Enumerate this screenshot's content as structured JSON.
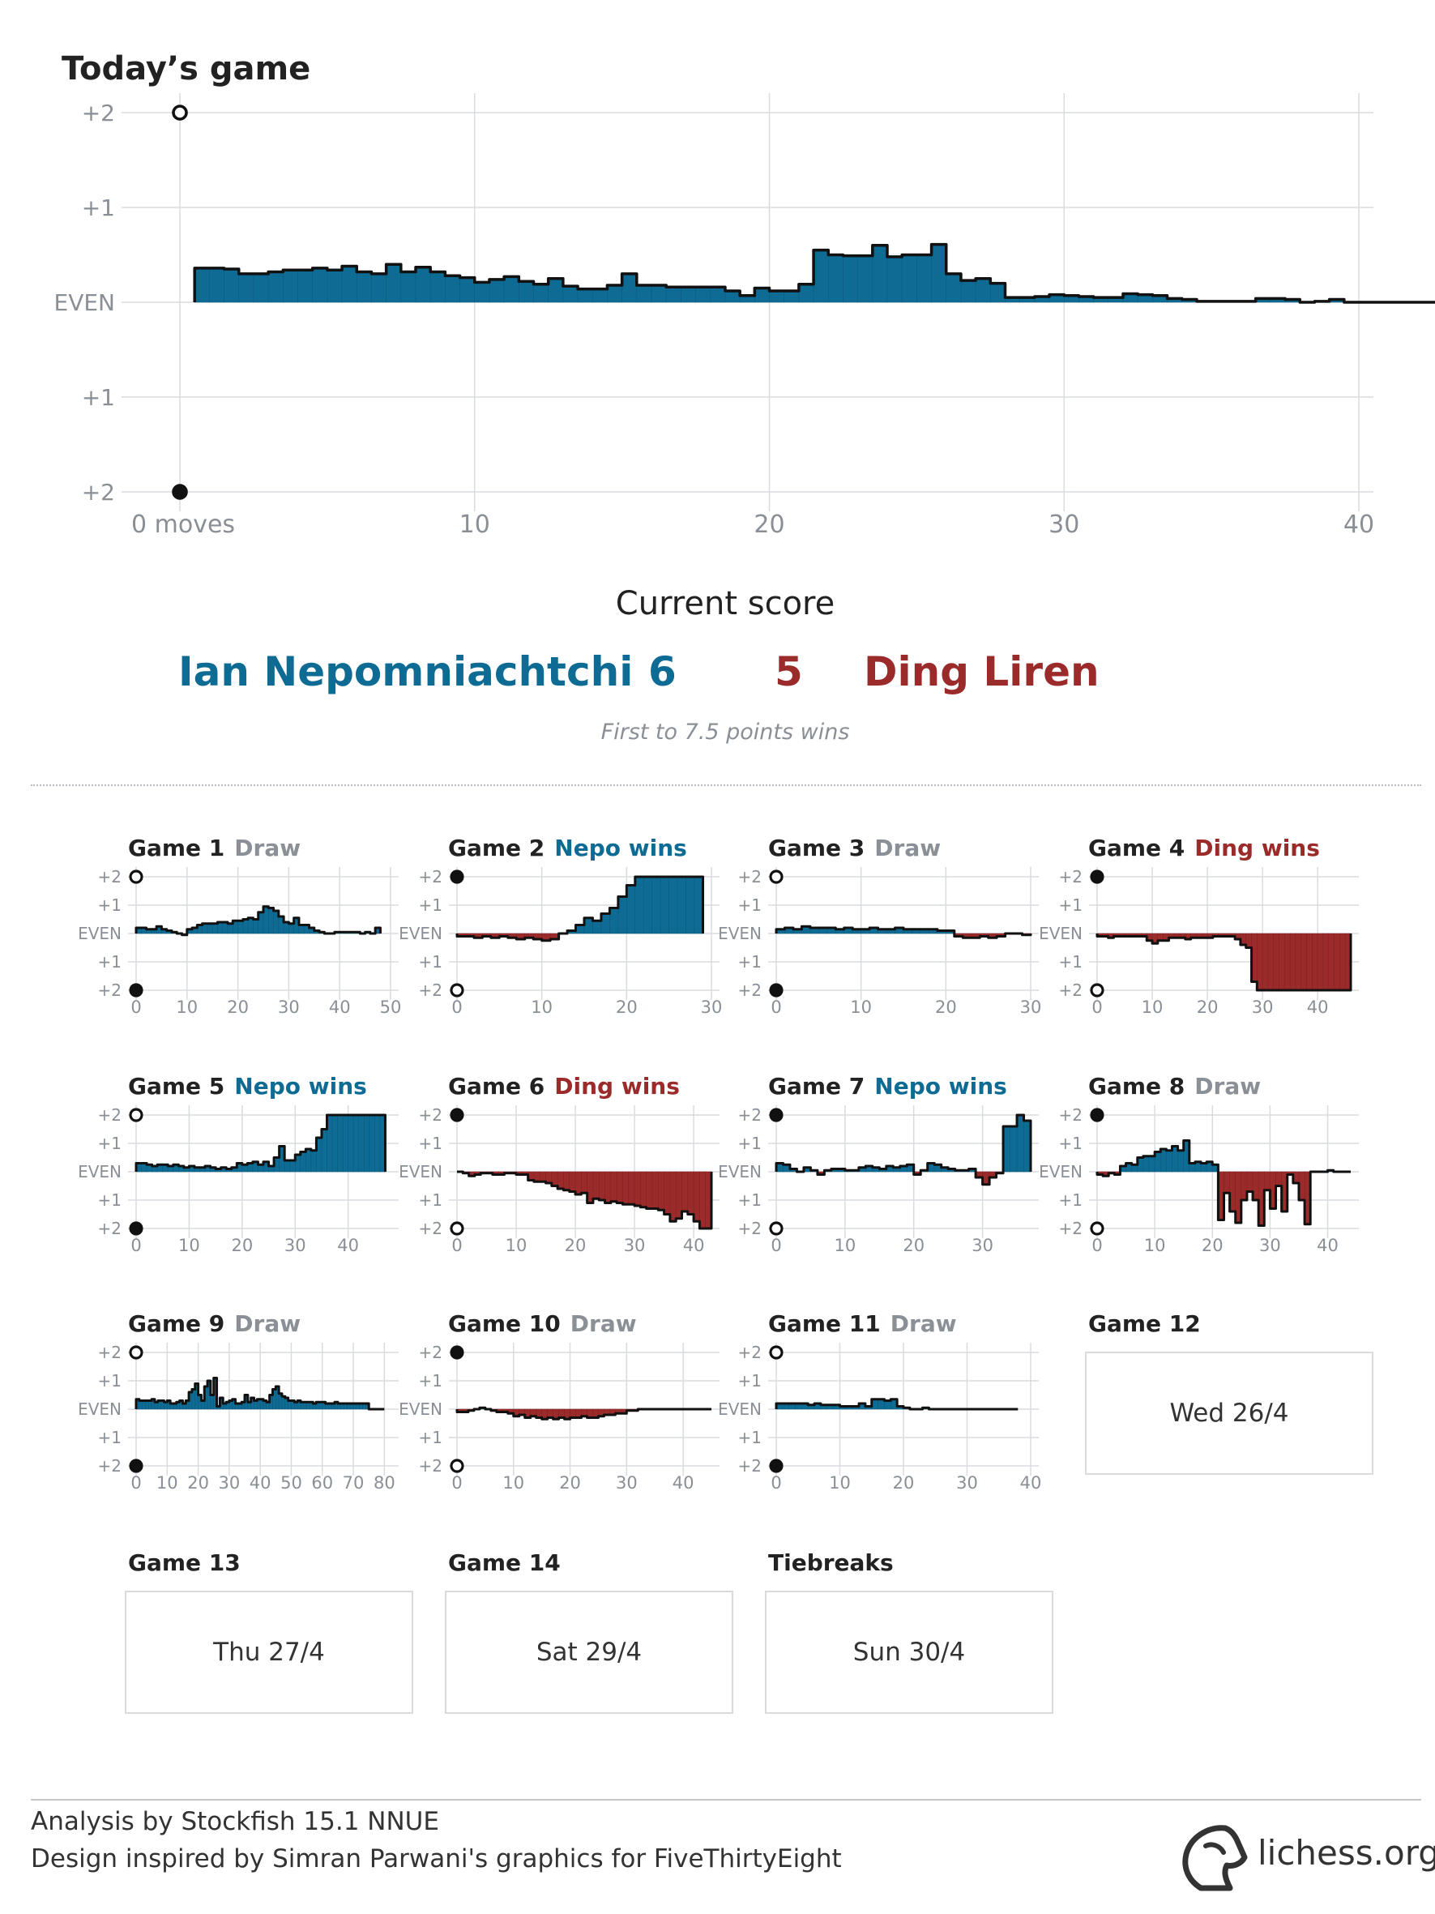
{
  "header": {
    "title": "Today’s game"
  },
  "colors": {
    "nepo": "#0e6b94",
    "ding": "#9b2b2b",
    "draw": "#8a9096",
    "grid": "#d9dcdf",
    "line": "#111111"
  },
  "chart_data": [
    {
      "id": "today",
      "type": "area",
      "xticks": [
        "0 moves",
        "10",
        "20",
        "30",
        "40"
      ],
      "xtick_values": [
        0,
        10,
        20,
        30,
        40
      ],
      "yticks": [
        "+2",
        "+1",
        "EVEN",
        "+1",
        "+2"
      ],
      "xlim": [
        0,
        40
      ],
      "ylim": [
        -2,
        2
      ],
      "grid": true,
      "top_marker": "white",
      "bottom_marker": "black",
      "x_step": 0.5,
      "y": [
        0.36,
        0.36,
        0.35,
        0.3,
        0.3,
        0.32,
        0.34,
        0.34,
        0.36,
        0.34,
        0.38,
        0.32,
        0.3,
        0.4,
        0.32,
        0.37,
        0.32,
        0.28,
        0.26,
        0.21,
        0.24,
        0.27,
        0.22,
        0.19,
        0.25,
        0.17,
        0.14,
        0.14,
        0.18,
        0.3,
        0.18,
        0.18,
        0.16,
        0.16,
        0.16,
        0.16,
        0.12,
        0.07,
        0.15,
        0.12,
        0.12,
        0.19,
        0.55,
        0.5,
        0.49,
        0.49,
        0.6,
        0.48,
        0.5,
        0.5,
        0.61,
        0.3,
        0.23,
        0.25,
        0.2,
        0.05,
        0.05,
        0.06,
        0.08,
        0.07,
        0.06,
        0.05,
        0.05,
        0.09,
        0.08,
        0.07,
        0.04,
        0.03,
        0.01,
        0.01,
        0.01,
        0.01,
        0.04,
        0.04,
        0.03,
        0.0,
        0.01,
        0.03,
        0,
        0,
        0,
        0,
        0,
        0,
        0,
        0,
        0,
        0,
        0,
        0,
        0,
        0,
        0,
        0,
        0,
        0,
        0,
        0,
        0,
        0,
        0,
        0,
        0,
        0,
        0,
        0.1,
        0.0,
        0,
        0,
        0,
        0,
        0,
        0,
        0,
        0,
        0,
        0,
        0,
        0,
        0,
        0,
        0,
        0,
        0,
        0,
        0,
        0,
        0,
        0,
        0,
        0,
        0,
        0,
        0,
        0,
        0,
        0,
        0,
        0,
        0,
        0,
        0,
        0,
        0,
        0,
        0,
        0,
        0,
        0,
        0,
        0,
        0,
        0,
        0,
        0,
        0,
        0,
        0,
        0,
        0,
        0,
        0,
        0,
        0,
        0,
        0,
        0,
        0,
        0,
        0,
        0,
        0,
        0,
        0,
        0,
        0,
        0,
        0,
        0,
        0
      ]
    },
    {
      "id": "g1",
      "type": "area",
      "title": "Game 1",
      "result": "Draw",
      "result_type": "draw",
      "xticks": [
        "0",
        "10",
        "20",
        "30",
        "40",
        "50"
      ],
      "xtick_values": [
        0,
        10,
        20,
        30,
        40,
        50
      ],
      "xlim": [
        0,
        50
      ],
      "top_marker": "white",
      "bottom_marker": "black",
      "y": [
        0.2,
        0.2,
        0.15,
        0.15,
        0.25,
        0.15,
        0.1,
        0.05,
        0.0,
        -0.05,
        0.15,
        0.2,
        0.3,
        0.35,
        0.35,
        0.35,
        0.4,
        0.4,
        0.35,
        0.45,
        0.45,
        0.5,
        0.55,
        0.5,
        0.75,
        0.95,
        0.9,
        0.8,
        0.6,
        0.4,
        0.35,
        0.55,
        0.3,
        0.3,
        0.2,
        0.1,
        0.05,
        0.0,
        0.0,
        0.05,
        0.05,
        0.05,
        0.05,
        0.05,
        0.0,
        0.05,
        0.0,
        0.2
      ]
    },
    {
      "id": "g2",
      "type": "area",
      "title": "Game 2",
      "result": "Nepo wins",
      "result_type": "nepo",
      "xticks": [
        "0",
        "10",
        "20",
        "30"
      ],
      "xtick_values": [
        0,
        10,
        20,
        30
      ],
      "xlim": [
        0,
        30
      ],
      "top_marker": "black",
      "bottom_marker": "white",
      "y": [
        -0.1,
        -0.1,
        -0.15,
        -0.1,
        -0.15,
        -0.1,
        -0.15,
        -0.2,
        -0.15,
        -0.2,
        -0.25,
        -0.2,
        0.0,
        0.1,
        0.3,
        0.55,
        0.45,
        0.7,
        0.9,
        1.3,
        1.7,
        2.0,
        2.0,
        2.0,
        2.0,
        2.0,
        2.0,
        2.0,
        2.0
      ]
    },
    {
      "id": "g3",
      "type": "area",
      "title": "Game 3",
      "result": "Draw",
      "result_type": "draw",
      "xticks": [
        "0",
        "10",
        "20",
        "30"
      ],
      "xtick_values": [
        0,
        10,
        20,
        30
      ],
      "xlim": [
        0,
        30
      ],
      "top_marker": "white",
      "bottom_marker": "black",
      "y": [
        0.15,
        0.2,
        0.15,
        0.25,
        0.2,
        0.2,
        0.2,
        0.15,
        0.2,
        0.15,
        0.15,
        0.2,
        0.15,
        0.15,
        0.2,
        0.15,
        0.15,
        0.15,
        0.15,
        0.1,
        0.1,
        -0.1,
        -0.15,
        -0.15,
        -0.1,
        -0.15,
        -0.1,
        0.0,
        0.0,
        -0.05
      ]
    },
    {
      "id": "g4",
      "type": "area",
      "title": "Game 4",
      "result": "Ding wins",
      "result_type": "ding",
      "xticks": [
        "0",
        "10",
        "20",
        "30",
        "40"
      ],
      "xtick_values": [
        0,
        10,
        20,
        30,
        40
      ],
      "xlim": [
        0,
        46
      ],
      "top_marker": "black",
      "bottom_marker": "white",
      "y": [
        -0.1,
        -0.1,
        -0.15,
        -0.1,
        -0.1,
        -0.1,
        -0.1,
        -0.1,
        -0.1,
        -0.25,
        -0.35,
        -0.25,
        -0.25,
        -0.15,
        -0.15,
        -0.15,
        -0.2,
        -0.15,
        -0.15,
        -0.15,
        -0.15,
        -0.1,
        -0.1,
        -0.1,
        -0.1,
        -0.2,
        -0.4,
        -0.5,
        -1.7,
        -2.0,
        -2.0,
        -2.0,
        -2.0,
        -2.0,
        -2.0,
        -2.0,
        -2.0,
        -2.0,
        -2.0,
        -2.0,
        -2.0,
        -2.0,
        -2.0,
        -2.0,
        -2.0,
        -2.0
      ]
    },
    {
      "id": "g5",
      "type": "area",
      "title": "Game 5",
      "result": "Nepo wins",
      "result_type": "nepo",
      "xticks": [
        "0",
        "10",
        "20",
        "30",
        "40"
      ],
      "xtick_values": [
        0,
        10,
        20,
        30,
        40
      ],
      "xlim": [
        0,
        48
      ],
      "top_marker": "white",
      "bottom_marker": "black",
      "y": [
        0.3,
        0.3,
        0.25,
        0.2,
        0.25,
        0.25,
        0.2,
        0.25,
        0.2,
        0.15,
        0.2,
        0.15,
        0.15,
        0.2,
        0.15,
        0.1,
        0.15,
        0.1,
        0.15,
        0.3,
        0.25,
        0.3,
        0.35,
        0.25,
        0.35,
        0.2,
        0.5,
        0.9,
        0.4,
        0.4,
        0.6,
        0.7,
        0.8,
        0.75,
        1.2,
        1.5,
        2.0,
        2.0,
        2.0,
        2.0,
        2.0,
        2.0,
        2.0,
        2.0,
        2.0,
        2.0,
        2.0
      ]
    },
    {
      "id": "g6",
      "type": "area",
      "title": "Game 6",
      "result": "Ding wins",
      "result_type": "ding",
      "xticks": [
        "0",
        "10",
        "20",
        "30",
        "40"
      ],
      "xtick_values": [
        0,
        10,
        20,
        30,
        40
      ],
      "xlim": [
        0,
        43
      ],
      "top_marker": "black",
      "bottom_marker": "white",
      "y": [
        0.0,
        -0.05,
        -0.15,
        -0.1,
        -0.05,
        -0.05,
        -0.1,
        -0.1,
        -0.05,
        -0.05,
        -0.1,
        -0.1,
        -0.3,
        -0.35,
        -0.35,
        -0.4,
        -0.5,
        -0.6,
        -0.65,
        -0.7,
        -0.8,
        -0.75,
        -1.1,
        -0.95,
        -1.0,
        -1.1,
        -1.05,
        -1.1,
        -1.15,
        -1.15,
        -1.2,
        -1.25,
        -1.3,
        -1.3,
        -1.35,
        -1.5,
        -1.75,
        -1.65,
        -1.4,
        -1.5,
        -1.75,
        -2.0,
        -2.0
      ]
    },
    {
      "id": "g7",
      "type": "area",
      "title": "Game 7",
      "result": "Nepo wins",
      "result_type": "nepo",
      "xticks": [
        "0",
        "10",
        "20",
        "30"
      ],
      "xtick_values": [
        0,
        10,
        20,
        30
      ],
      "xlim": [
        0,
        37
      ],
      "top_marker": "black",
      "bottom_marker": "white",
      "y": [
        0.3,
        0.25,
        0.1,
        0.0,
        0.15,
        0.05,
        -0.1,
        0.05,
        0.1,
        0.1,
        0.05,
        0.05,
        0.15,
        0.2,
        0.15,
        0.1,
        0.2,
        0.15,
        0.2,
        0.25,
        -0.1,
        0.05,
        0.3,
        0.25,
        0.15,
        0.1,
        0.05,
        0.05,
        0.1,
        -0.2,
        -0.45,
        -0.2,
        -0.05,
        1.6,
        1.6,
        2.0,
        1.8
      ]
    },
    {
      "id": "g8",
      "type": "area",
      "title": "Game 8",
      "result": "Draw",
      "result_type": "draw",
      "xticks": [
        "0",
        "10",
        "20",
        "30",
        "40"
      ],
      "xtick_values": [
        0,
        10,
        20,
        30,
        40
      ],
      "xlim": [
        0,
        44
      ],
      "top_marker": "black",
      "bottom_marker": "white",
      "y": [
        -0.1,
        -0.15,
        -0.05,
        -0.1,
        0.2,
        0.3,
        0.25,
        0.5,
        0.55,
        0.55,
        0.7,
        0.8,
        0.75,
        0.9,
        0.75,
        1.1,
        0.3,
        0.35,
        0.3,
        0.35,
        0.25,
        -1.7,
        -0.75,
        -1.4,
        -1.8,
        -1.0,
        -0.7,
        -1.0,
        -1.9,
        -0.65,
        -1.3,
        -0.5,
        -1.4,
        -0.1,
        -0.4,
        -1.0,
        -1.85,
        0.0,
        0.0,
        0.0,
        0.05,
        0.0,
        0.0,
        0.0
      ]
    },
    {
      "id": "g9",
      "type": "area",
      "title": "Game 9",
      "result": "Draw",
      "result_type": "draw",
      "xticks": [
        "0",
        "10",
        "20",
        "30",
        "40",
        "50",
        "60",
        "70",
        "80"
      ],
      "xtick_values": [
        0,
        10,
        20,
        30,
        40,
        50,
        60,
        70,
        80
      ],
      "xlim": [
        0,
        82
      ],
      "top_marker": "white",
      "bottom_marker": "black",
      "y": [
        0.35,
        0.3,
        0.3,
        0.3,
        0.3,
        0.35,
        0.25,
        0.3,
        0.3,
        0.25,
        0.3,
        0.2,
        0.2,
        0.25,
        0.3,
        0.2,
        0.3,
        0.6,
        0.7,
        0.9,
        0.5,
        0.3,
        0.8,
        1.0,
        0.5,
        1.1,
        0.1,
        0.4,
        0.2,
        0.25,
        0.3,
        0.35,
        0.2,
        0.2,
        0.25,
        0.5,
        0.25,
        0.4,
        0.3,
        0.35,
        0.35,
        0.3,
        0.25,
        0.5,
        0.7,
        0.8,
        0.55,
        0.45,
        0.4,
        0.3,
        0.3,
        0.25,
        0.3,
        0.25,
        0.25,
        0.25,
        0.25,
        0.2,
        0.25,
        0.25,
        0.25,
        0.2,
        0.2,
        0.2,
        0.25,
        0.2,
        0.2,
        0.2,
        0.2,
        0.2,
        0.2,
        0.2,
        0.2,
        0.2,
        0.2,
        0.0,
        0.0,
        0.0,
        0.0,
        0.0
      ]
    },
    {
      "id": "g10",
      "type": "area",
      "title": "Game 10",
      "result": "Draw",
      "result_type": "draw",
      "xticks": [
        "0",
        "10",
        "20",
        "30",
        "40"
      ],
      "xtick_values": [
        0,
        10,
        20,
        30,
        40
      ],
      "xlim": [
        0,
        45
      ],
      "top_marker": "black",
      "bottom_marker": "white",
      "y": [
        -0.1,
        -0.1,
        -0.05,
        0.0,
        0.05,
        0.0,
        -0.05,
        -0.1,
        -0.1,
        -0.15,
        -0.25,
        -0.2,
        -0.3,
        -0.25,
        -0.3,
        -0.35,
        -0.3,
        -0.35,
        -0.3,
        -0.35,
        -0.3,
        -0.3,
        -0.25,
        -0.3,
        -0.3,
        -0.25,
        -0.2,
        -0.2,
        -0.15,
        -0.15,
        -0.05,
        -0.05,
        0.0,
        0.0,
        0.0,
        0.0,
        0.0,
        0.0,
        0.0,
        0.0,
        0.0,
        0.0,
        0.0,
        0.0,
        0.0
      ]
    },
    {
      "id": "g11",
      "type": "area",
      "title": "Game 11",
      "result": "Draw",
      "result_type": "draw",
      "xticks": [
        "0",
        "10",
        "20",
        "30",
        "40"
      ],
      "xtick_values": [
        0,
        10,
        20,
        30,
        40
      ],
      "xlim": [
        0,
        40
      ],
      "top_marker": "white",
      "bottom_marker": "black",
      "y": [
        0.2,
        0.2,
        0.2,
        0.2,
        0.2,
        0.15,
        0.2,
        0.15,
        0.15,
        0.15,
        0.1,
        0.1,
        0.1,
        0.2,
        0.1,
        0.35,
        0.35,
        0.3,
        0.35,
        0.1,
        0.05,
        0.0,
        0.0,
        0.05,
        0.0,
        0.0,
        0.0,
        0.0,
        0.0,
        0.0,
        0.0,
        0.0,
        0.0,
        0.0,
        0.0,
        0.0,
        0.0,
        0.0
      ]
    }
  ],
  "mini_yticks": [
    "+2",
    "+1",
    "EVEN",
    "+1",
    "+2"
  ],
  "score": {
    "label": "Current score",
    "nepo_name": "Ian Nepomniachtchi",
    "nepo_score": "6",
    "ding_score": "5",
    "ding_name": "Ding Liren",
    "note": "First to 7.5 points wins"
  },
  "schedule": [
    {
      "title": "Game 12",
      "date": "Wed 26/4"
    },
    {
      "title": "Game 13",
      "date": "Thu 27/4"
    },
    {
      "title": "Game 14",
      "date": "Sat 29/4"
    },
    {
      "title": "Tiebreaks",
      "date": "Sun 30/4"
    }
  ],
  "footer": {
    "line1": "Analysis by Stockfish 15.1 NNUE",
    "line2": "Design inspired by Simran Parwani's graphics for FiveThirtyEight",
    "brand": "lichess.org",
    "brand_icon": "knight-icon"
  }
}
